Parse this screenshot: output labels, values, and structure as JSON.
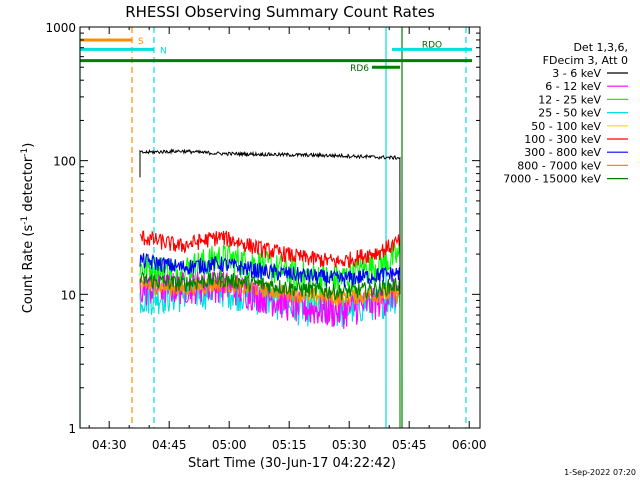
{
  "chart_data": {
    "type": "line",
    "title": "RHESSI Observing Summary Count Rates",
    "xlabel": "Start Time (30-Jun-17 04:22:42)",
    "ylabel_main": "Count Rate (s",
    "ylabel_sup1": "-1",
    "ylabel_mid": " detector",
    "ylabel_sup2": "-1",
    "ylabel_end": ")",
    "yscale": "log",
    "ylim": [
      1,
      1000
    ],
    "xlim_minutes": [
      0,
      100
    ],
    "x_ticks": [
      {
        "label": "04:30",
        "min": 7.3
      },
      {
        "label": "04:45",
        "min": 22.3
      },
      {
        "label": "05:00",
        "min": 37.3
      },
      {
        "label": "05:15",
        "min": 52.3
      },
      {
        "label": "05:30",
        "min": 67.3
      },
      {
        "label": "05:45",
        "min": 82.3
      },
      {
        "label": "06:00",
        "min": 97.3
      }
    ],
    "y_ticks": [
      {
        "label": "1",
        "value": 1
      },
      {
        "label": "10",
        "value": 10
      },
      {
        "label": "100",
        "value": 100
      },
      {
        "label": "1000",
        "value": 1000
      }
    ],
    "legend_header": [
      "Det 1,3,6,",
      "FDecim 3, Att 0"
    ],
    "legend_position": "right",
    "series": [
      {
        "name": "3 - 6 keV",
        "color": "#000000",
        "start": 15,
        "end": 80,
        "points": [
          [
            15,
            115
          ],
          [
            25,
            118
          ],
          [
            35,
            113
          ],
          [
            50,
            111
          ],
          [
            65,
            109
          ],
          [
            75,
            106
          ],
          [
            80,
            105
          ]
        ]
      },
      {
        "name": "6 - 12 keV",
        "color": "#ff00ff",
        "start": 15,
        "end": 80,
        "points": [
          [
            15,
            11
          ],
          [
            25,
            11.5
          ],
          [
            35,
            12
          ],
          [
            45,
            10
          ],
          [
            55,
            8
          ],
          [
            65,
            7.5
          ],
          [
            75,
            9
          ],
          [
            80,
            11
          ]
        ]
      },
      {
        "name": "12 - 25 keV",
        "color": "#00ff00",
        "start": 15,
        "end": 80,
        "points": [
          [
            15,
            16
          ],
          [
            25,
            15
          ],
          [
            35,
            19
          ],
          [
            45,
            17
          ],
          [
            55,
            14
          ],
          [
            65,
            13
          ],
          [
            75,
            17
          ],
          [
            80,
            20
          ]
        ]
      },
      {
        "name": "25 - 50 keV",
        "color": "#00e0e0",
        "start": 15,
        "end": 80,
        "points": [
          [
            15,
            9.5
          ],
          [
            25,
            10
          ],
          [
            35,
            11
          ],
          [
            45,
            9.5
          ],
          [
            55,
            8
          ],
          [
            65,
            7.5
          ],
          [
            75,
            9
          ],
          [
            80,
            10
          ]
        ]
      },
      {
        "name": "50 - 100 keV",
        "color": "#ffd700",
        "start": 15,
        "end": 80,
        "points": [
          [
            15,
            11
          ],
          [
            25,
            11
          ],
          [
            35,
            12
          ],
          [
            45,
            10.5
          ],
          [
            55,
            9.5
          ],
          [
            65,
            9
          ],
          [
            75,
            10
          ],
          [
            80,
            11
          ]
        ]
      },
      {
        "name": "100 - 300 keV",
        "color": "#ff0000",
        "start": 15,
        "end": 80,
        "points": [
          [
            15,
            27
          ],
          [
            25,
            23
          ],
          [
            35,
            27
          ],
          [
            45,
            22
          ],
          [
            55,
            19
          ],
          [
            65,
            17.5
          ],
          [
            75,
            21
          ],
          [
            80,
            25
          ]
        ]
      },
      {
        "name": "300 - 800 keV",
        "color": "#0000ff",
        "start": 15,
        "end": 80,
        "points": [
          [
            15,
            18
          ],
          [
            25,
            16
          ],
          [
            35,
            17
          ],
          [
            45,
            15
          ],
          [
            55,
            14
          ],
          [
            65,
            13
          ],
          [
            75,
            14
          ],
          [
            80,
            14.5
          ]
        ]
      },
      {
        "name": "800 - 7000 keV",
        "color": "#ff8c00",
        "start": 15,
        "end": 80,
        "points": [
          [
            15,
            12
          ],
          [
            25,
            11
          ],
          [
            35,
            12
          ],
          [
            45,
            11
          ],
          [
            55,
            10
          ],
          [
            65,
            9.5
          ],
          [
            75,
            10
          ],
          [
            80,
            10
          ]
        ]
      },
      {
        "name": "7000 - 15000 keV",
        "color": "#008000",
        "start": 15,
        "end": 80,
        "points": [
          [
            15,
            13
          ],
          [
            25,
            12
          ],
          [
            35,
            13
          ],
          [
            45,
            12
          ],
          [
            55,
            11
          ],
          [
            65,
            10.5
          ],
          [
            75,
            11
          ],
          [
            80,
            12
          ]
        ]
      }
    ],
    "flags": [
      {
        "label": "S",
        "color": "#ff8c00",
        "start": 0,
        "end": 13,
        "level": 800
      },
      {
        "label": "N",
        "color": "#00e0e0",
        "start": 0,
        "end": 18.5,
        "level": 680
      },
      {
        "label": "RDO",
        "color": "#00e0e0",
        "start": 78,
        "end": 98,
        "level": 680
      },
      {
        "label": "",
        "color": "#008000",
        "start": 0,
        "end": 98,
        "level": 560
      },
      {
        "label": "RD6",
        "color": "#008000",
        "start": 73,
        "end": 80,
        "level": 500
      }
    ],
    "vlines": [
      {
        "color": "#00e0e0",
        "style": "solid",
        "min": 0
      },
      {
        "color": "#ff8c00",
        "style": "dashed",
        "min": 13
      },
      {
        "color": "#00e0e0",
        "style": "dashed",
        "min": 18.5
      },
      {
        "color": "#00e0e0",
        "style": "solid",
        "min": 76.5
      },
      {
        "color": "#008000",
        "style": "solid",
        "min": 80.5
      },
      {
        "color": "#00e0e0",
        "style": "dashed",
        "min": 96.5
      }
    ]
  },
  "footer_timestamp": "1-Sep-2022 07:20"
}
